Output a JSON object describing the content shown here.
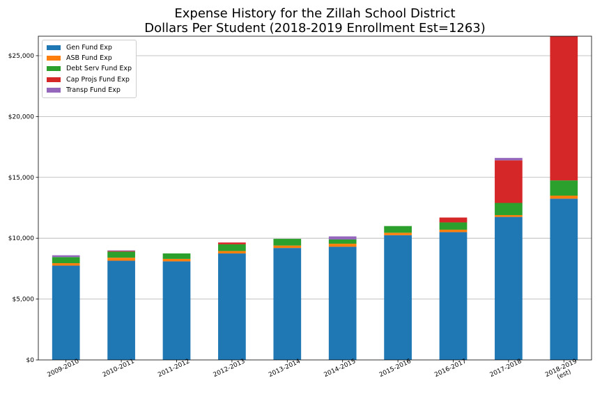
{
  "chart_data": {
    "type": "bar",
    "stacked": true,
    "title": "Expense History for the Zillah School District",
    "subtitle": "Dollars Per Student (2018-2019 Enrollment Est=1263)",
    "xlabel": "",
    "ylabel": "",
    "ylim": [
      0,
      26600
    ],
    "yticks": [
      0,
      5000,
      10000,
      15000,
      20000,
      25000
    ],
    "ytick_labels": [
      "$0",
      "$5,000",
      "$10,000",
      "$15,000",
      "$20,000",
      "$25,000"
    ],
    "grid": "horizontal",
    "legend_position": "top-left",
    "categories": [
      [
        "2009-2010"
      ],
      [
        "2010-2011"
      ],
      [
        "2011-2012"
      ],
      [
        "2012-2013"
      ],
      [
        "2013-2014"
      ],
      [
        "2014-2015"
      ],
      [
        "2015-2016"
      ],
      [
        "2016-2017"
      ],
      [
        "2017-2018"
      ],
      [
        "2018-2019",
        "(est)"
      ]
    ],
    "series": [
      {
        "name": "Gen Fund Exp",
        "color": "#1f77b4",
        "values": [
          7750,
          8150,
          8100,
          8750,
          9200,
          9300,
          10250,
          10500,
          11750,
          13250
        ]
      },
      {
        "name": "ASB Fund Exp",
        "color": "#ff7f0e",
        "values": [
          200,
          250,
          200,
          200,
          200,
          250,
          200,
          200,
          150,
          250
        ]
      },
      {
        "name": "Debt Serv Fund Exp",
        "color": "#2ca02c",
        "values": [
          500,
          500,
          450,
          550,
          550,
          350,
          550,
          600,
          1000,
          1250
        ]
      },
      {
        "name": "Cap Projs Fund Exp",
        "color": "#d62728",
        "values": [
          0,
          50,
          0,
          150,
          0,
          0,
          0,
          400,
          3500,
          11850
        ]
      },
      {
        "name": "Transp Fund Exp",
        "color": "#9467bd",
        "values": [
          150,
          50,
          0,
          0,
          0,
          250,
          0,
          0,
          200,
          0
        ]
      }
    ]
  }
}
